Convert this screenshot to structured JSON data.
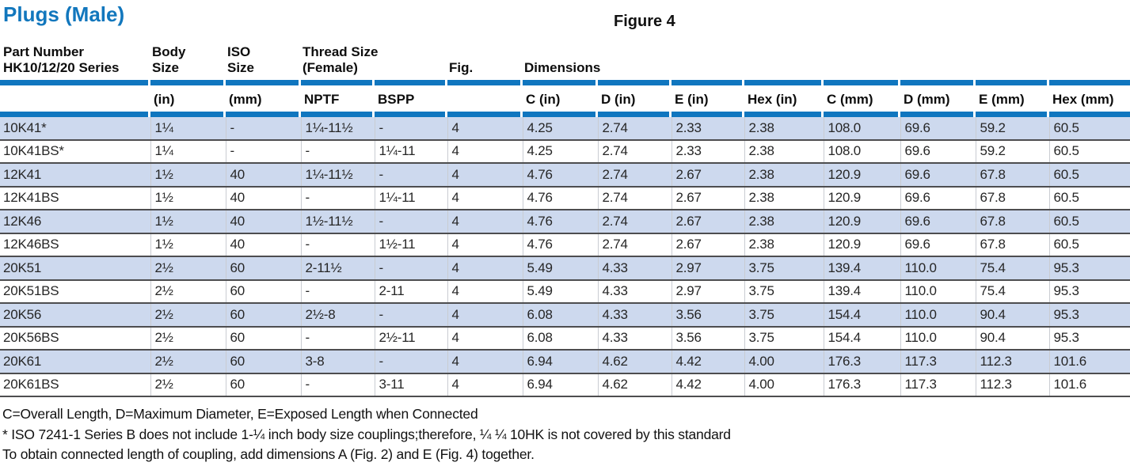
{
  "page": {
    "title": "Plugs (Male)",
    "figure_label": "Figure 4"
  },
  "table": {
    "header": {
      "part_number": "Part Number\nHK10/12/20 Series",
      "body_size": "Body\nSize",
      "iso_size": "ISO\nSize",
      "thread_size": "Thread Size\n(Female)",
      "fig": "Fig.",
      "dimensions": "Dimensions"
    },
    "subheaders": [
      "",
      "(in)",
      "(mm)",
      "NPTF",
      "BSPP",
      "",
      "C (in)",
      "D (in)",
      "E (in)",
      "Hex (in)",
      "C (mm)",
      "D (mm)",
      "E (mm)",
      "Hex (mm)"
    ],
    "rows": [
      [
        "10K41*",
        "1¼",
        "-",
        "1¼-11½",
        "-",
        "4",
        "4.25",
        "2.74",
        "2.33",
        "2.38",
        "108.0",
        "69.6",
        "59.2",
        "60.5"
      ],
      [
        "10K41BS*",
        "1¼",
        "-",
        "-",
        "1¼-11",
        "4",
        "4.25",
        "2.74",
        "2.33",
        "2.38",
        "108.0",
        "69.6",
        "59.2",
        "60.5"
      ],
      [
        "12K41",
        "1½",
        "40",
        "1¼-11½",
        "-",
        "4",
        "4.76",
        "2.74",
        "2.67",
        "2.38",
        "120.9",
        "69.6",
        "67.8",
        "60.5"
      ],
      [
        "12K41BS",
        "1½",
        "40",
        "-",
        "1¼-11",
        "4",
        "4.76",
        "2.74",
        "2.67",
        "2.38",
        "120.9",
        "69.6",
        "67.8",
        "60.5"
      ],
      [
        "12K46",
        "1½",
        "40",
        "1½-11½",
        "-",
        "4",
        "4.76",
        "2.74",
        "2.67",
        "2.38",
        "120.9",
        "69.6",
        "67.8",
        "60.5"
      ],
      [
        "12K46BS",
        "1½",
        "40",
        "-",
        "1½-11",
        "4",
        "4.76",
        "2.74",
        "2.67",
        "2.38",
        "120.9",
        "69.6",
        "67.8",
        "60.5"
      ],
      [
        "20K51",
        "2½",
        "60",
        "2-11½",
        "-",
        "4",
        "5.49",
        "4.33",
        "2.97",
        "3.75",
        "139.4",
        "110.0",
        "75.4",
        "95.3"
      ],
      [
        "20K51BS",
        "2½",
        "60",
        "-",
        "2-11",
        "4",
        "5.49",
        "4.33",
        "2.97",
        "3.75",
        "139.4",
        "110.0",
        "75.4",
        "95.3"
      ],
      [
        "20K56",
        "2½",
        "60",
        "2½-8",
        "-",
        "4",
        "6.08",
        "4.33",
        "3.56",
        "3.75",
        "154.4",
        "110.0",
        "90.4",
        "95.3"
      ],
      [
        "20K56BS",
        "2½",
        "60",
        "-",
        "2½-11",
        "4",
        "6.08",
        "4.33",
        "3.56",
        "3.75",
        "154.4",
        "110.0",
        "90.4",
        "95.3"
      ],
      [
        "20K61",
        "2½",
        "60",
        "3-8",
        "-",
        "4",
        "6.94",
        "4.62",
        "4.42",
        "4.00",
        "176.3",
        "117.3",
        "112.3",
        "101.6"
      ],
      [
        "20K61BS",
        "2½",
        "60",
        "-",
        "3-11",
        "4",
        "6.94",
        "4.62",
        "4.42",
        "4.00",
        "176.3",
        "117.3",
        "112.3",
        "101.6"
      ]
    ]
  },
  "footnotes": [
    "C=Overall Length, D=Maximum Diameter, E=Exposed Length when Connected",
    "* ISO 7241-1 Series B does not include 1-¼ inch body size couplings;therefore, ¼ ¼ 10HK is not covered by this standard",
    "To obtain connected length of coupling, add dimensions A (Fig. 2) and E (Fig. 4) together."
  ],
  "colors": {
    "accent_blue": "#1076bf",
    "title_blue": "#1277bd",
    "row_alt_blue": "#cdd9ee",
    "separator_dark": "#4d4d4f"
  }
}
